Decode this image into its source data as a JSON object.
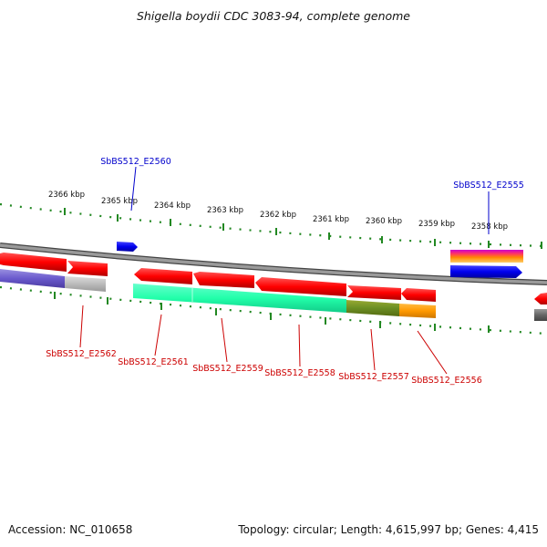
{
  "title": "Shigella boydii CDC 3083-94, complete genome",
  "ticks": [
    "2366 kbp",
    "2365 kbp",
    "2364 kbp",
    "2363 kbp",
    "2362 kbp",
    "2361 kbp",
    "2360 kbp",
    "2359 kbp",
    "2358 kbp"
  ],
  "genes": [
    {
      "label": "SbBS512_E2560",
      "color": "#0000cc"
    },
    {
      "label": "SbBS512_E2555",
      "color": "#0000cc"
    },
    {
      "label": "SbBS512_E2562",
      "color": "#cc0000"
    },
    {
      "label": "SbBS512_E2561",
      "color": "#cc0000"
    },
    {
      "label": "SbBS512_E2559",
      "color": "#cc0000"
    },
    {
      "label": "SbBS512_E2558",
      "color": "#cc0000"
    },
    {
      "label": "SbBS512_E2557",
      "color": "#cc0000"
    },
    {
      "label": "SbBS512_E2556",
      "color": "#cc0000"
    }
  ],
  "footer": {
    "accession": "Accession: NC_010658",
    "summary": "Topology: circular; Length: 4,615,997 bp; Genes: 4,415"
  },
  "colors": {
    "forward_cds": "#ff0000",
    "reverse_cds": "#0000ee",
    "backbone": "#888888",
    "ticks": "#228822"
  }
}
